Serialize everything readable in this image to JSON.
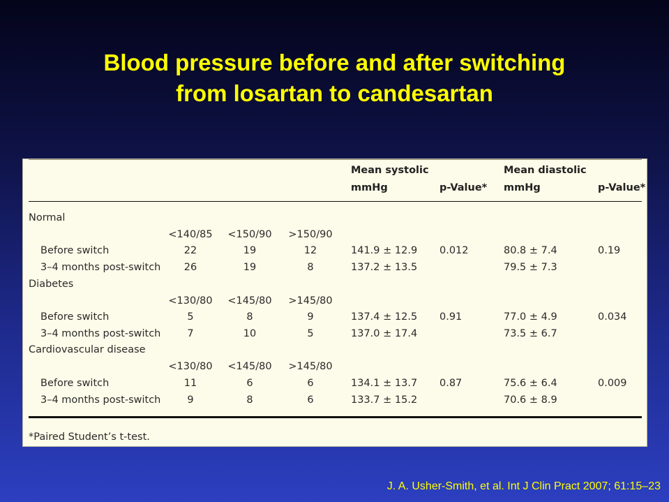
{
  "title": {
    "line1": "Blood pressure before and after switching",
    "line2": "from losartan to candesartan"
  },
  "table": {
    "headers": {
      "mean_systolic": "Mean systolic",
      "mean_systolic_unit": "mmHg",
      "p_value_1": "p-Value*",
      "mean_diastolic": "Mean diastolic",
      "mean_diastolic_unit": "mmHg",
      "p_value_2": "p-Value*"
    },
    "groups": [
      {
        "name": "Normal",
        "thresholds": [
          "<140/85",
          "<150/90",
          ">150/90"
        ],
        "rows": [
          {
            "label": "Before switch",
            "counts": [
              "22",
              "19",
              "12"
            ],
            "systolic": "141.9 ± 12.9",
            "p_sys": "0.012",
            "diastolic": "80.8 ± 7.4",
            "p_dia": "0.19"
          },
          {
            "label": "3–4 months post-switch",
            "counts": [
              "26",
              "19",
              "8"
            ],
            "systolic": "137.2 ± 13.5",
            "p_sys": "",
            "diastolic": "79.5 ± 7.3",
            "p_dia": ""
          }
        ]
      },
      {
        "name": "Diabetes",
        "thresholds": [
          "<130/80",
          "<145/80",
          ">145/80"
        ],
        "rows": [
          {
            "label": "Before switch",
            "counts": [
              "5",
              "8",
              "9"
            ],
            "systolic": "137.4 ± 12.5",
            "p_sys": "0.91",
            "diastolic": "77.0 ± 4.9",
            "p_dia": "0.034"
          },
          {
            "label": "3–4 months post-switch",
            "counts": [
              "7",
              "10",
              "5"
            ],
            "systolic": "137.0 ± 17.4",
            "p_sys": "",
            "diastolic": "73.5 ± 6.7",
            "p_dia": ""
          }
        ]
      },
      {
        "name": "Cardiovascular disease",
        "thresholds": [
          "<130/80",
          "<145/80",
          ">145/80"
        ],
        "rows": [
          {
            "label": "Before switch",
            "counts": [
              "11",
              "6",
              "6"
            ],
            "systolic": "134.1 ± 13.7",
            "p_sys": "0.87",
            "diastolic": "75.6 ± 6.4",
            "p_dia": "0.009"
          },
          {
            "label": "3–4 months post-switch",
            "counts": [
              "9",
              "8",
              "6"
            ],
            "systolic": "133.7 ± 15.2",
            "p_sys": "",
            "diastolic": "70.6 ± 8.9",
            "p_dia": ""
          }
        ]
      }
    ],
    "footnote": "*Paired Student’s t-test."
  },
  "citation": "J. A. Usher-Smith, et al. Int J Clin Pract 2007; 61:15–23"
}
